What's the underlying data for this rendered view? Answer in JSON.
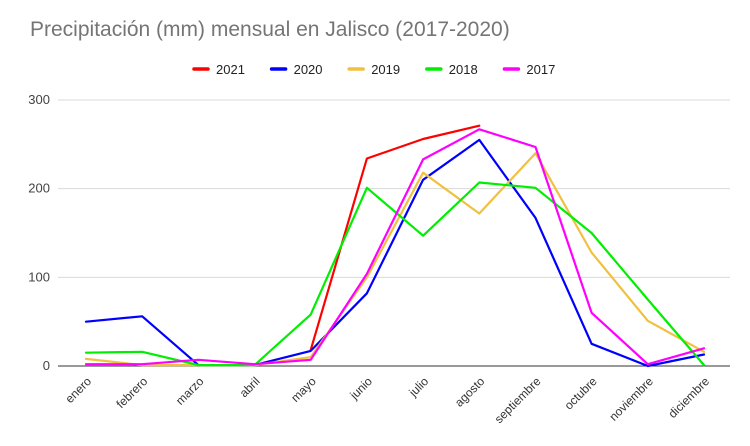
{
  "chart_data": {
    "type": "line",
    "title": "Precipitación (mm) mensual en Jalisco (2017-2020)",
    "xlabel": "",
    "ylabel": "",
    "ylim": [
      0,
      300
    ],
    "yticks": [
      0,
      100,
      200,
      300
    ],
    "grid": true,
    "legend_position": "top",
    "categories": [
      "enero",
      "febrero",
      "marzo",
      "abril",
      "mayo",
      "junio",
      "julio",
      "agosto",
      "septiembre",
      "octubre",
      "noviembre",
      "diciembre"
    ],
    "series": [
      {
        "name": "2021",
        "color": "#ff0000",
        "values": [
          null,
          null,
          null,
          null,
          18,
          234,
          256,
          271,
          null,
          null,
          null,
          null
        ]
      },
      {
        "name": "2020",
        "color": "#0000ff",
        "values": [
          50,
          56,
          1,
          1,
          17,
          82,
          210,
          255,
          167,
          25,
          0,
          13
        ]
      },
      {
        "name": "2019",
        "color": "#f0c040",
        "values": [
          8,
          1,
          1,
          1,
          10,
          100,
          218,
          172,
          240,
          128,
          51,
          16
        ]
      },
      {
        "name": "2018",
        "color": "#00ee00",
        "values": [
          15,
          16,
          1,
          1,
          58,
          201,
          147,
          207,
          201,
          150,
          75,
          1
        ]
      },
      {
        "name": "2017",
        "color": "#ff00ff",
        "values": [
          2,
          2,
          7,
          2,
          7,
          104,
          233,
          267,
          247,
          60,
          2,
          20
        ]
      }
    ]
  }
}
